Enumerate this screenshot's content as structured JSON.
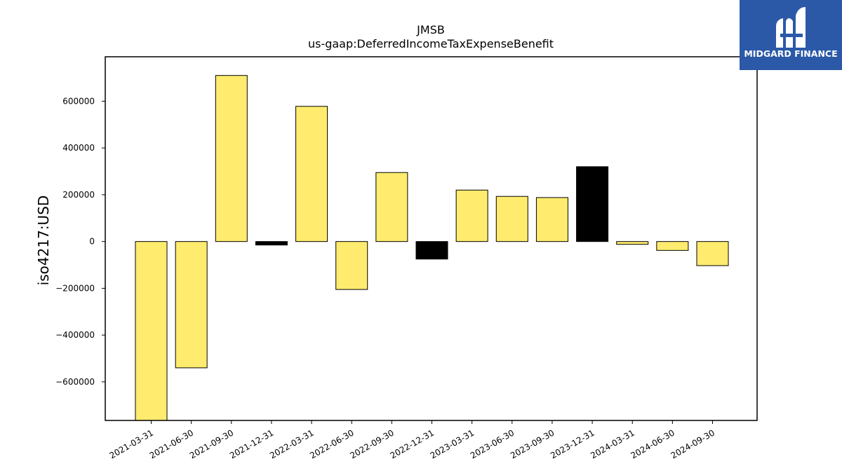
{
  "chart_data": {
    "type": "bar",
    "title": "JMSB",
    "subtitle": "us-gaap:DeferredIncomeTaxExpenseBenefit",
    "xlabel": "",
    "ylabel": "iso4217:USD",
    "ylim": [
      -765000,
      790000
    ],
    "yticks": [
      -600000,
      -400000,
      -200000,
      0,
      200000,
      400000,
      600000
    ],
    "ytick_labels": [
      "−600000",
      "−400000",
      "−200000",
      "0",
      "200000",
      "400000",
      "600000"
    ],
    "grid": false,
    "categories": [
      "2021-03-31",
      "2021-06-30",
      "2021-09-30",
      "2021-12-31",
      "2022-03-31",
      "2022-06-30",
      "2022-09-30",
      "2022-12-31",
      "2023-03-31",
      "2023-06-30",
      "2023-09-30",
      "2023-12-31",
      "2024-03-31",
      "2024-06-30",
      "2024-09-30"
    ],
    "values": [
      -765000,
      -540000,
      710000,
      -15000,
      578000,
      -205000,
      295000,
      -75000,
      220000,
      193000,
      188000,
      320000,
      -12000,
      -38000,
      -103000
    ],
    "bar_colors": [
      "#ffec6e",
      "#ffec6e",
      "#ffec6e",
      "#000000",
      "#ffec6e",
      "#ffec6e",
      "#ffec6e",
      "#000000",
      "#ffec6e",
      "#ffec6e",
      "#ffec6e",
      "#000000",
      "#ffec6e",
      "#ffec6e",
      "#ffec6e"
    ]
  },
  "logo": {
    "text": "MIDGARD FINANCE",
    "background": "#2b59a8",
    "icon": "midgard-m-icon"
  }
}
